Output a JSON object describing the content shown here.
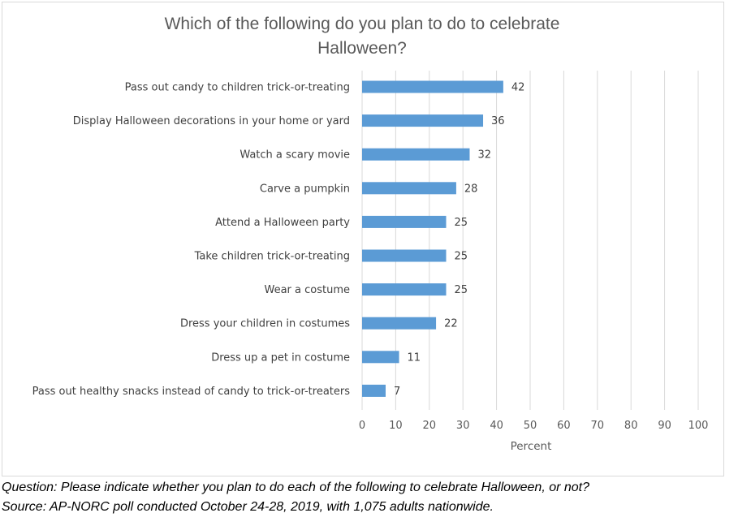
{
  "chart_data": {
    "type": "bar",
    "orientation": "horizontal",
    "title_lines": [
      "Which of the following do you plan to do to celebrate",
      "Halloween?"
    ],
    "categories": [
      "Pass out candy to children trick-or-treating",
      "Display Halloween decorations in your home or yard",
      "Watch a scary movie",
      "Carve a pumpkin",
      "Attend a Halloween party",
      "Take children trick-or-treating",
      "Wear a costume",
      "Dress your children in costumes",
      "Dress up a pet in costume",
      "Pass out healthy snacks instead of candy to trick-or-treaters"
    ],
    "values": [
      42,
      36,
      32,
      28,
      25,
      25,
      25,
      22,
      11,
      7
    ],
    "xlabel": "Percent",
    "xlim": [
      0,
      100
    ],
    "xticks": [
      0,
      10,
      20,
      30,
      40,
      50,
      60,
      70,
      80,
      90,
      100
    ],
    "grid": "vertical",
    "bar_color": "#5b9bd5",
    "data_labels": true
  },
  "footnotes": {
    "question": "Question:  Please indicate whether you plan to do each of the following to celebrate Halloween, or not?",
    "source": "Source: AP-NORC poll conducted October 24-28, 2019, with 1,075 adults nationwide."
  }
}
